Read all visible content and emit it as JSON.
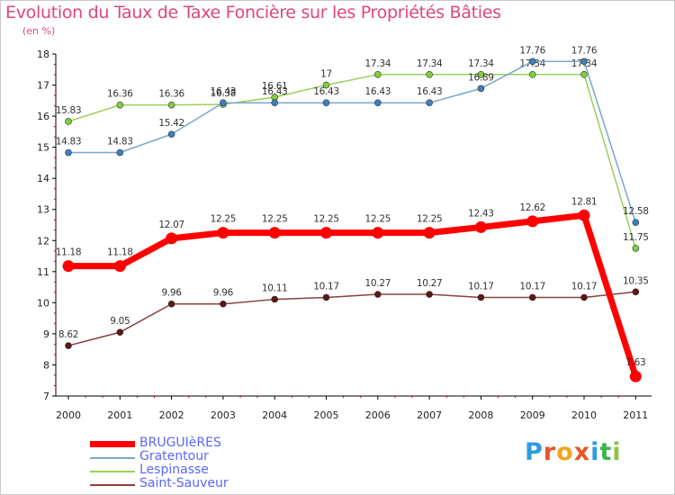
{
  "chart_data": {
    "type": "line",
    "title": "Evolution du Taux de Taxe Foncière sur les Propriétés Bâties",
    "unit_label": "(en %)",
    "categories": [
      "2000",
      "2001",
      "2002",
      "2003",
      "2004",
      "2005",
      "2006",
      "2007",
      "2008",
      "2009",
      "2010",
      "2011"
    ],
    "ylim": [
      7,
      18
    ],
    "yticks": [
      "7",
      "8",
      "9",
      "10",
      "11",
      "12",
      "13",
      "14",
      "15",
      "16",
      "17",
      "18"
    ],
    "grid": false,
    "legend_position": "bottom-left",
    "series": [
      {
        "key": "lespinasse",
        "name": "Lespinasse",
        "color": "#99d05a",
        "marker": "#7ed03a",
        "width": 1.5,
        "radius": 3.5,
        "values": [
          15.83,
          16.36,
          16.36,
          16.38,
          16.61,
          17,
          17.34,
          17.34,
          17.34,
          17.34,
          17.34,
          11.75
        ],
        "labels": [
          "15.83",
          "16.36",
          "16.36",
          "16.38",
          "16.61",
          "17",
          "17.34",
          "17.34",
          "17.34",
          "17.34",
          "17.34",
          "11.75"
        ]
      },
      {
        "key": "gratentour",
        "name": "Gratentour",
        "color": "#7aa7cc",
        "marker": "#3d80c2",
        "width": 1.5,
        "radius": 3.5,
        "values": [
          14.83,
          14.83,
          15.42,
          16.43,
          16.43,
          16.43,
          16.43,
          16.43,
          16.89,
          17.76,
          17.76,
          12.58
        ],
        "labels": [
          "14.83",
          "14.83",
          "15.42",
          "16.43",
          "16.43",
          "16.43",
          "16.43",
          "16.43",
          "16.89",
          "17.76",
          "17.76",
          "12.58"
        ]
      },
      {
        "key": "saintsauveur",
        "name": "Saint-Sauveur",
        "color": "#8a4040",
        "marker": "#5e1616",
        "width": 1.5,
        "radius": 3.5,
        "values": [
          8.62,
          9.05,
          9.96,
          9.96,
          10.11,
          10.17,
          10.27,
          10.27,
          10.17,
          10.17,
          10.17,
          10.35
        ],
        "labels": [
          "8.62",
          "9.05",
          "9.96",
          "9.96",
          "10.11",
          "10.17",
          "10.27",
          "10.27",
          "10.17",
          "10.17",
          "10.17",
          "10.35"
        ]
      },
      {
        "key": "bruguieres",
        "name": "BRUGUIèRES",
        "color": "#ff0000",
        "marker": "#ff0000",
        "width": 7,
        "radius": 6.5,
        "values": [
          11.18,
          11.18,
          12.07,
          12.25,
          12.25,
          12.25,
          12.25,
          12.25,
          12.43,
          12.62,
          12.81,
          7.63
        ],
        "labels": [
          "11.18",
          "11.18",
          "12.07",
          "12.25",
          "12.25",
          "12.25",
          "12.25",
          "12.25",
          "12.43",
          "12.62",
          "12.81",
          "7.63"
        ]
      }
    ]
  },
  "legend": {
    "items": [
      {
        "name": "BRUGUIèRES",
        "color": "#ff0000",
        "label_color": "#5a66ff"
      },
      {
        "name": "Gratentour",
        "color": "#7aa7cc",
        "label_color": "#5a66ff"
      },
      {
        "name": "Lespinasse",
        "color": "#99d05a",
        "label_color": "#5a66ff"
      },
      {
        "name": "Saint-Sauveur",
        "color": "#8a4040",
        "label_color": "#5a66ff"
      }
    ]
  },
  "logo": {
    "letters": [
      "P",
      "r",
      "o",
      "x",
      "i",
      "t",
      "i"
    ],
    "colors": [
      "#2f9be0",
      "#e8552a",
      "#f2a51c",
      "#e8552a",
      "#2f9be0",
      "#39b54a",
      "#8dc63f"
    ]
  },
  "colors": {
    "title": "#e0467a",
    "axis": "#000000",
    "tick_label": "#222222",
    "value_label": "#333333"
  }
}
